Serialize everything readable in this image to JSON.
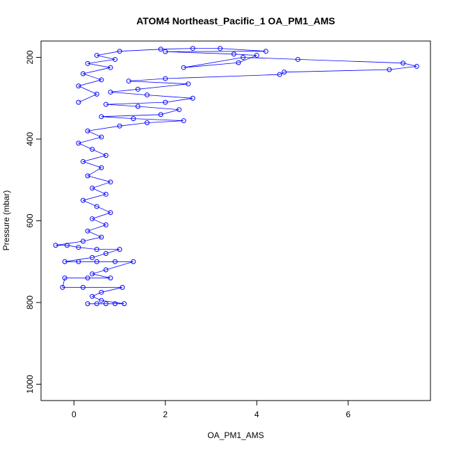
{
  "chart_data": {
    "type": "line",
    "title": "ATOM4 Northeast_Pacific_1 OA_PM1_AMS",
    "xlabel": "OA_PM1_AMS",
    "ylabel": "Pressure (mbar)",
    "xlim": [
      -0.72,
      7.8
    ],
    "ylim": [
      1040,
      160
    ],
    "y_reversed": true,
    "x_ticks": [
      0,
      2,
      4,
      6
    ],
    "y_ticks": [
      200,
      400,
      600,
      800,
      1000
    ],
    "grid": false,
    "marker": "open-circle",
    "line": true,
    "color": "#0000ff",
    "series": [
      {
        "values": [
          {
            "x": 0.3,
            "y": 803
          },
          {
            "x": 0.5,
            "y": 803
          },
          {
            "x": 0.7,
            "y": 803
          },
          {
            "x": 0.9,
            "y": 803
          },
          {
            "x": 1.1,
            "y": 803
          },
          {
            "x": 0.6,
            "y": 795
          },
          {
            "x": 0.4,
            "y": 785
          },
          {
            "x": 0.6,
            "y": 775
          },
          {
            "x": 1.06,
            "y": 763
          },
          {
            "x": 0.2,
            "y": 763
          },
          {
            "x": -0.25,
            "y": 763
          },
          {
            "x": -0.2,
            "y": 740
          },
          {
            "x": 0.3,
            "y": 740
          },
          {
            "x": 0.8,
            "y": 740
          },
          {
            "x": 0.4,
            "y": 730
          },
          {
            "x": 0.7,
            "y": 720
          },
          {
            "x": 1.3,
            "y": 700
          },
          {
            "x": 0.9,
            "y": 700
          },
          {
            "x": 0.5,
            "y": 700
          },
          {
            "x": 0.1,
            "y": 700
          },
          {
            "x": -0.2,
            "y": 700
          },
          {
            "x": 0.4,
            "y": 690
          },
          {
            "x": 0.7,
            "y": 680
          },
          {
            "x": 1.0,
            "y": 670
          },
          {
            "x": 0.5,
            "y": 670
          },
          {
            "x": 0.1,
            "y": 665
          },
          {
            "x": -0.15,
            "y": 660
          },
          {
            "x": -0.4,
            "y": 660
          },
          {
            "x": 0.2,
            "y": 650
          },
          {
            "x": 0.6,
            "y": 640
          },
          {
            "x": 0.3,
            "y": 625
          },
          {
            "x": 0.7,
            "y": 610
          },
          {
            "x": 0.4,
            "y": 595
          },
          {
            "x": 0.8,
            "y": 580
          },
          {
            "x": 0.5,
            "y": 565
          },
          {
            "x": 0.2,
            "y": 550
          },
          {
            "x": 0.7,
            "y": 535
          },
          {
            "x": 0.4,
            "y": 520
          },
          {
            "x": 0.8,
            "y": 505
          },
          {
            "x": 0.3,
            "y": 490
          },
          {
            "x": 0.6,
            "y": 470
          },
          {
            "x": 0.2,
            "y": 455
          },
          {
            "x": 0.7,
            "y": 440
          },
          {
            "x": 0.4,
            "y": 425
          },
          {
            "x": 0.1,
            "y": 410
          },
          {
            "x": 0.6,
            "y": 395
          },
          {
            "x": 0.3,
            "y": 380
          },
          {
            "x": 1.0,
            "y": 368
          },
          {
            "x": 1.6,
            "y": 360
          },
          {
            "x": 2.4,
            "y": 355
          },
          {
            "x": 1.3,
            "y": 350
          },
          {
            "x": 0.6,
            "y": 345
          },
          {
            "x": 1.9,
            "y": 340
          },
          {
            "x": 2.3,
            "y": 328
          },
          {
            "x": 1.4,
            "y": 320
          },
          {
            "x": 0.7,
            "y": 315
          },
          {
            "x": 2.0,
            "y": 310
          },
          {
            "x": 2.6,
            "y": 300
          },
          {
            "x": 1.6,
            "y": 292
          },
          {
            "x": 0.8,
            "y": 285
          },
          {
            "x": 1.4,
            "y": 278
          },
          {
            "x": 2.5,
            "y": 265
          },
          {
            "x": 1.2,
            "y": 258
          },
          {
            "x": 2.0,
            "y": 252
          },
          {
            "x": 4.5,
            "y": 242
          },
          {
            "x": 4.6,
            "y": 236
          },
          {
            "x": 6.9,
            "y": 230
          },
          {
            "x": 7.5,
            "y": 222
          },
          {
            "x": 7.2,
            "y": 214
          },
          {
            "x": 4.9,
            "y": 205
          },
          {
            "x": 3.7,
            "y": 200
          },
          {
            "x": 2.4,
            "y": 225
          },
          {
            "x": 3.6,
            "y": 213
          },
          {
            "x": 4.0,
            "y": 195
          },
          {
            "x": 3.5,
            "y": 192
          },
          {
            "x": 2.0,
            "y": 186
          },
          {
            "x": 4.2,
            "y": 185
          },
          {
            "x": 3.2,
            "y": 178
          },
          {
            "x": 2.6,
            "y": 178
          },
          {
            "x": 1.9,
            "y": 180
          },
          {
            "x": 1.0,
            "y": 185
          },
          {
            "x": 0.5,
            "y": 195
          },
          {
            "x": 0.9,
            "y": 205
          },
          {
            "x": 0.3,
            "y": 215
          },
          {
            "x": 0.8,
            "y": 225
          },
          {
            "x": 0.2,
            "y": 240
          },
          {
            "x": 0.6,
            "y": 255
          },
          {
            "x": 0.1,
            "y": 270
          },
          {
            "x": 0.5,
            "y": 290
          },
          {
            "x": 0.1,
            "y": 310
          }
        ]
      }
    ]
  }
}
